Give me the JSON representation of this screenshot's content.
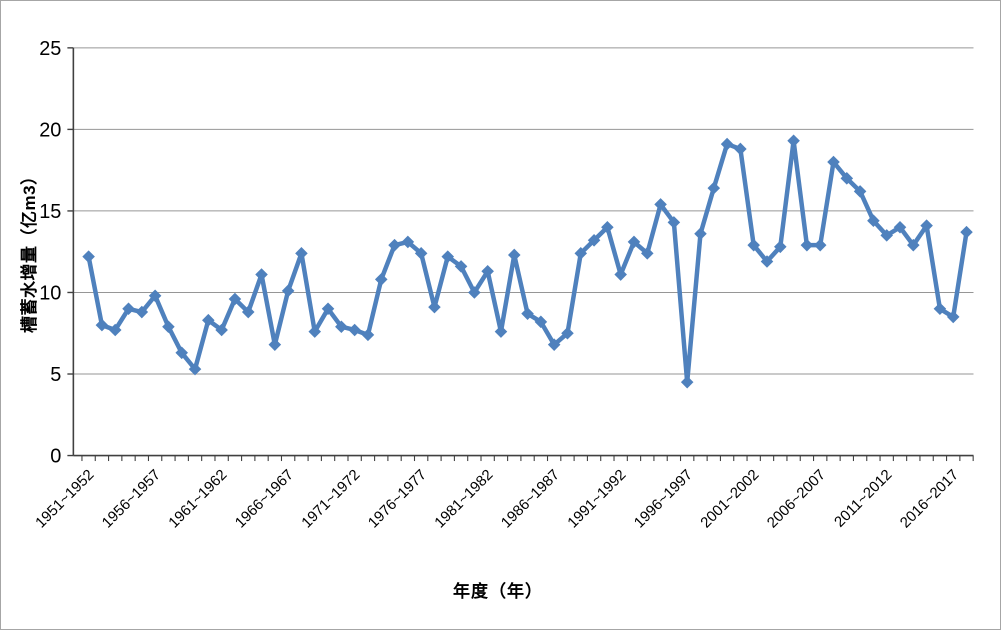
{
  "chart_data": {
    "type": "line",
    "title": "",
    "xlabel": "年度（年）",
    "ylabel": "槽蓄水增量（亿m3）",
    "ylim": [
      0,
      25
    ],
    "y_ticks": [
      0,
      5,
      10,
      15,
      20,
      25
    ],
    "x_tick_label_every": 5,
    "grid": true,
    "legend_position": "none",
    "marker": "diamond",
    "line_color": "#4F81BD",
    "gridline_color": "#969696",
    "axis_color": "#404040",
    "text_color": "#000000",
    "background_color": "#FFFFFF",
    "border_color": "#A6A6A6",
    "categories": [
      "1951~1952",
      "1952~1953",
      "1953~1954",
      "1954~1955",
      "1955~1956",
      "1956~1957",
      "1957~1958",
      "1958~1959",
      "1959~1960",
      "1960~1961",
      "1961~1962",
      "1962~1963",
      "1963~1964",
      "1964~1965",
      "1965~1966",
      "1966~1967",
      "1967~1968",
      "1968~1969",
      "1969~1970",
      "1970~1971",
      "1971~1972",
      "1972~1973",
      "1973~1974",
      "1974~1975",
      "1975~1976",
      "1976~1977",
      "1977~1978",
      "1978~1979",
      "1979~1980",
      "1980~1981",
      "1981~1982",
      "1982~1983",
      "1983~1984",
      "1984~1985",
      "1985~1986",
      "1986~1987",
      "1987~1988",
      "1988~1989",
      "1989~1990",
      "1990~1991",
      "1991~1992",
      "1992~1993",
      "1993~1994",
      "1994~1995",
      "1995~1996",
      "1996~1997",
      "1997~1998",
      "1998~1999",
      "1999~2000",
      "2000~2001",
      "2001~2002",
      "2002~2003",
      "2003~2004",
      "2004~2005",
      "2005~2006",
      "2006~2007",
      "2007~2008",
      "2008~2009",
      "2009~2010",
      "2010~2011",
      "2011~2012",
      "2012~2013",
      "2013~2014",
      "2014~2015",
      "2015~2016",
      "2016~2017",
      "2017~2018"
    ],
    "values": [
      12.2,
      8.0,
      7.7,
      9.0,
      8.8,
      9.8,
      7.9,
      6.3,
      5.3,
      8.3,
      7.7,
      9.6,
      8.8,
      11.1,
      6.8,
      10.1,
      12.4,
      7.6,
      9.0,
      7.9,
      7.7,
      7.4,
      10.8,
      12.9,
      13.1,
      12.4,
      9.1,
      12.2,
      11.6,
      10.0,
      11.3,
      7.6,
      12.3,
      8.7,
      8.2,
      6.8,
      7.5,
      12.4,
      13.2,
      14.0,
      11.1,
      13.1,
      12.4,
      15.4,
      14.3,
      4.5,
      13.6,
      16.4,
      19.1,
      18.8,
      12.9,
      11.9,
      12.8,
      19.3,
      12.9,
      12.9,
      18.0,
      17.0,
      16.2,
      14.4,
      13.5,
      14.0,
      12.9,
      14.1,
      9.0,
      8.5,
      13.7
    ]
  }
}
